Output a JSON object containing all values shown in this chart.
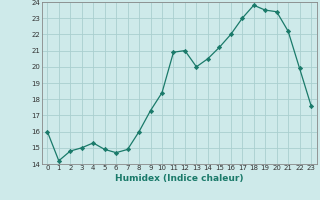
{
  "x": [
    0,
    1,
    2,
    3,
    4,
    5,
    6,
    7,
    8,
    9,
    10,
    11,
    12,
    13,
    14,
    15,
    16,
    17,
    18,
    19,
    20,
    21,
    22,
    23
  ],
  "y": [
    16.0,
    14.2,
    14.8,
    15.0,
    15.3,
    14.9,
    14.7,
    14.9,
    16.0,
    17.3,
    18.4,
    20.9,
    21.0,
    20.0,
    20.5,
    21.2,
    22.0,
    23.0,
    23.8,
    23.5,
    23.4,
    22.2,
    19.9,
    17.6
  ],
  "line_color": "#1a7a6a",
  "marker": "D",
  "markersize": 2.2,
  "linewidth": 0.9,
  "xlabel": "Humidex (Indice chaleur)",
  "ylim": [
    14,
    24
  ],
  "xlim": [
    -0.5,
    23.5
  ],
  "yticks": [
    14,
    15,
    16,
    17,
    18,
    19,
    20,
    21,
    22,
    23,
    24
  ],
  "xticks": [
    0,
    1,
    2,
    3,
    4,
    5,
    6,
    7,
    8,
    9,
    10,
    11,
    12,
    13,
    14,
    15,
    16,
    17,
    18,
    19,
    20,
    21,
    22,
    23
  ],
  "bg_color": "#ceeaea",
  "grid_color": "#aacfcf",
  "xlabel_fontsize": 6.5,
  "tick_fontsize": 5.0
}
